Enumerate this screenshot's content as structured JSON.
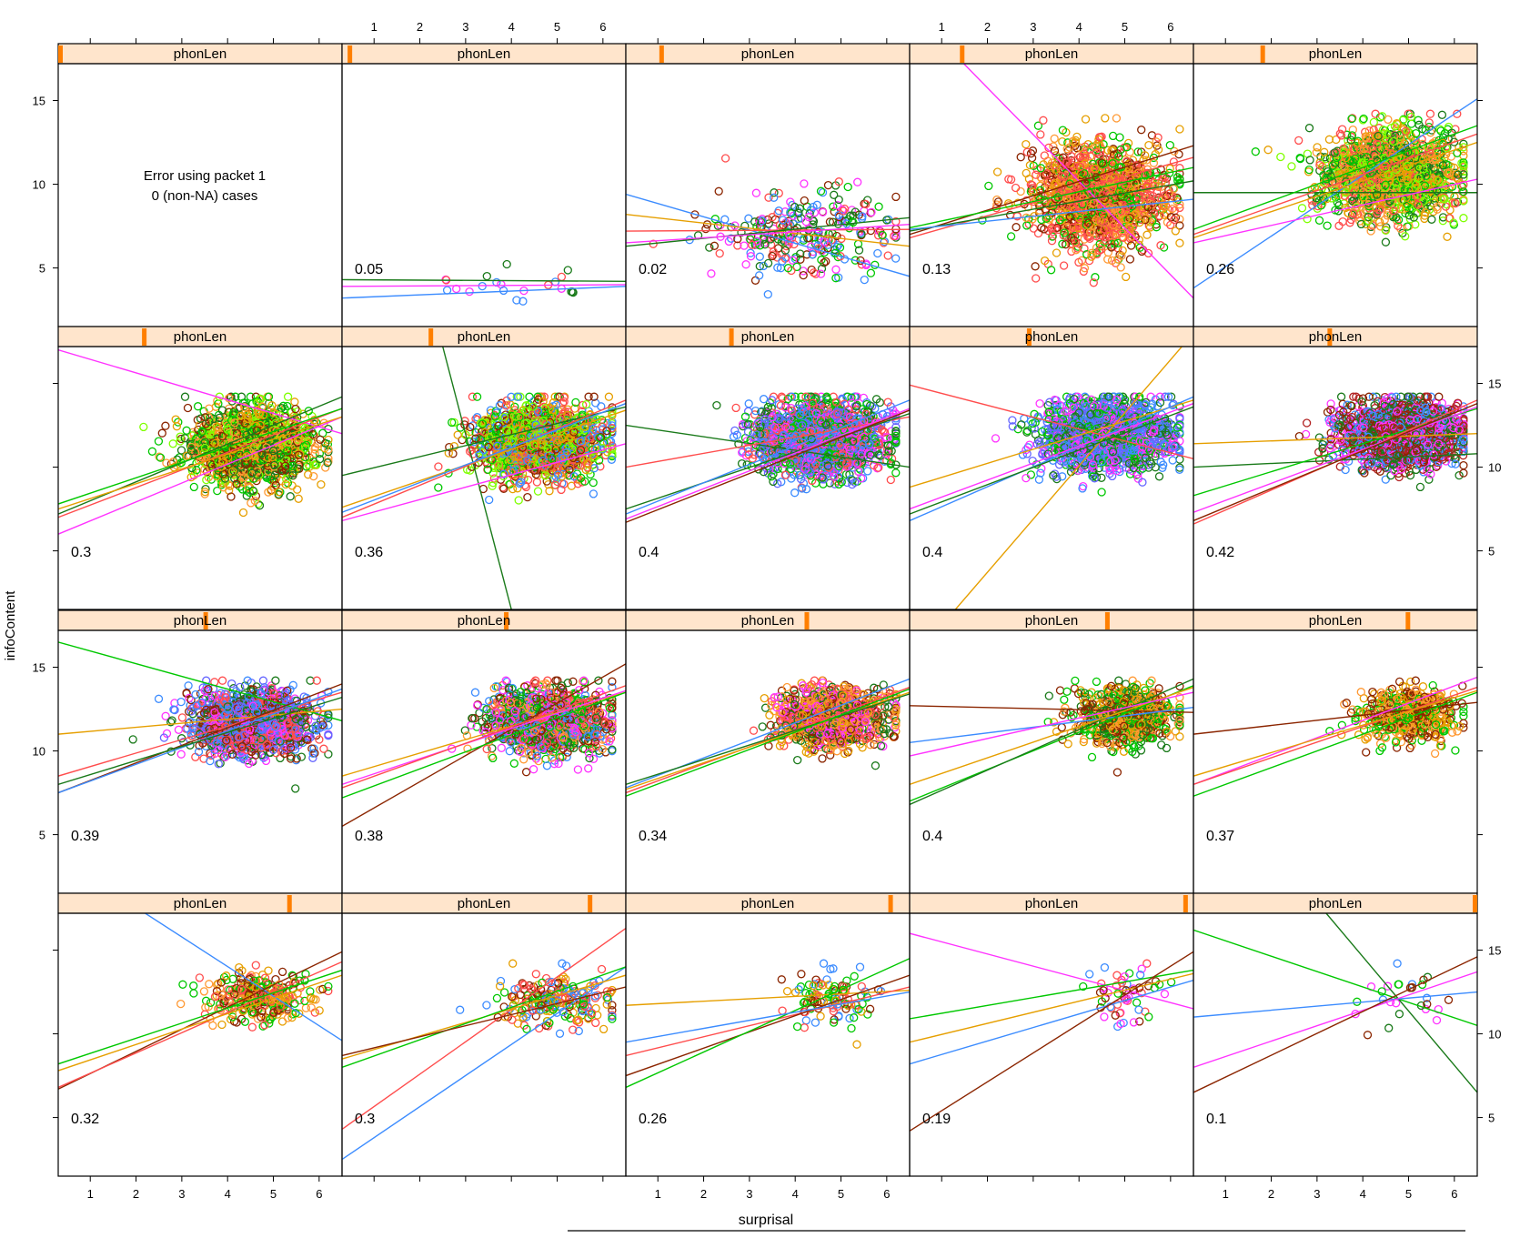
{
  "chart_data": {
    "type": "scatter",
    "layout": {
      "columns": 5,
      "rows": 4
    },
    "xlabel": "surprisal",
    "ylabel": "infoContent",
    "xlim": [
      0.3,
      6.5
    ],
    "ylim": [
      1.5,
      17.2
    ],
    "x_ticks": [
      1,
      2,
      3,
      4,
      5,
      6
    ],
    "y_ticks": [
      5,
      10,
      15
    ],
    "strip_label": "phonLen",
    "grid": false,
    "colors": [
      "#ff4d4d",
      "#e69f00",
      "#00c800",
      "#1a7a1a",
      "#8b2500",
      "#3c8cff",
      "#ff33ff",
      "#b22222",
      "#ff9933",
      "#7fff00",
      "#6666ff"
    ],
    "panels": [
      {
        "label": "",
        "error": [
          "Error using packet 1",
          "0 (non-NA) cases"
        ],
        "level": 0.0,
        "cluster": null,
        "lines": []
      },
      {
        "label": "0.05",
        "level": 0.02,
        "cluster": {
          "n": 22,
          "cx": 4.2,
          "cy": 4.0,
          "sx": 1.1,
          "sy": 0.6,
          "palette": [
            5,
            3,
            6,
            0
          ]
        },
        "lines": [
          {
            "c": 5,
            "y1": 3.2,
            "y2": 3.9
          },
          {
            "c": 6,
            "y1": 3.9,
            "y2": 4.0
          },
          {
            "c": 3,
            "y1": 4.3,
            "y2": 4.2
          }
        ]
      },
      {
        "label": "0.02",
        "level": 0.12,
        "cluster": {
          "n": 300,
          "cx": 4.2,
          "cy": 7.0,
          "sx": 1.2,
          "sy": 1.5,
          "palette": [
            6,
            3,
            4,
            0,
            5,
            2
          ]
        },
        "lines": [
          {
            "c": 5,
            "y1": 9.4,
            "y2": 4.5
          },
          {
            "c": 1,
            "y1": 8.2,
            "y2": 6.3
          },
          {
            "c": 0,
            "y1": 7.2,
            "y2": 7.3
          },
          {
            "c": 3,
            "y1": 6.3,
            "y2": 8.0
          },
          {
            "c": 6,
            "y1": 6.5,
            "y2": 7.6
          }
        ]
      },
      {
        "label": "0.13",
        "level": 0.18,
        "cluster": {
          "n": 1500,
          "cx": 4.4,
          "cy": 9.3,
          "sx": 0.85,
          "sy": 1.8,
          "palette": [
            0,
            8,
            1,
            4,
            0,
            2
          ]
        },
        "lines": [
          {
            "c": 6,
            "y1": 20.5,
            "y2": 3.2
          },
          {
            "c": 4,
            "y1": 7.0,
            "y2": 12.3
          },
          {
            "c": 0,
            "y1": 6.8,
            "y2": 11.6
          },
          {
            "c": 2,
            "y1": 7.4,
            "y2": 11.0
          },
          {
            "c": 3,
            "y1": 7.2,
            "y2": 10.2
          },
          {
            "c": 5,
            "y1": 7.3,
            "y2": 9.1
          }
        ]
      },
      {
        "label": "0.26",
        "level": 0.24,
        "cluster": {
          "n": 1500,
          "cx": 4.6,
          "cy": 10.6,
          "sx": 0.9,
          "sy": 1.6,
          "palette": [
            2,
            9,
            8,
            1,
            0,
            3
          ]
        },
        "lines": [
          {
            "c": 5,
            "y1": 3.8,
            "y2": 15.1
          },
          {
            "c": 3,
            "y1": 9.5,
            "y2": 9.5
          },
          {
            "c": 0,
            "y1": 7.0,
            "y2": 13.0
          },
          {
            "c": 1,
            "y1": 6.8,
            "y2": 12.5
          },
          {
            "c": 2,
            "y1": 7.3,
            "y2": 13.5
          },
          {
            "c": 6,
            "y1": 6.5,
            "y2": 10.3
          }
        ]
      },
      {
        "label": "0.3",
        "level": 0.3,
        "cluster": {
          "n": 1500,
          "cx": 4.5,
          "cy": 11.3,
          "sx": 0.8,
          "sy": 1.4,
          "palette": [
            2,
            9,
            1,
            8,
            3,
            4
          ]
        },
        "lines": [
          {
            "c": 6,
            "y1": 17.0,
            "y2": 12.0
          },
          {
            "c": 6,
            "y1": 6.0,
            "y2": 13.0
          },
          {
            "c": 0,
            "y1": 7.0,
            "y2": 13.5
          },
          {
            "c": 3,
            "y1": 7.2,
            "y2": 14.2
          },
          {
            "c": 1,
            "y1": 7.5,
            "y2": 13.0
          },
          {
            "c": 2,
            "y1": 7.8,
            "y2": 13.5
          }
        ]
      },
      {
        "label": "0.36",
        "level": 0.31,
        "cluster": {
          "n": 1700,
          "cx": 4.6,
          "cy": 11.5,
          "sx": 0.8,
          "sy": 1.3,
          "palette": [
            5,
            2,
            4,
            0,
            1,
            9
          ]
        },
        "lines": [
          {
            "c": 3,
            "x1": 2.5,
            "y1": 17.2,
            "x2": 4.0,
            "y2": 1.5
          },
          {
            "c": 3,
            "y1": 9.5,
            "y2": 13.6
          },
          {
            "c": 0,
            "y1": 7.0,
            "y2": 14.0
          },
          {
            "c": 1,
            "y1": 7.6,
            "y2": 13.4
          },
          {
            "c": 6,
            "y1": 6.8,
            "y2": 11.4
          },
          {
            "c": 5,
            "y1": 7.3,
            "y2": 13.8
          }
        ]
      },
      {
        "label": "0.4",
        "level": 0.37,
        "cluster": {
          "n": 1800,
          "cx": 4.5,
          "cy": 11.7,
          "sx": 0.8,
          "sy": 1.3,
          "palette": [
            5,
            6,
            10,
            3,
            2,
            0
          ]
        },
        "lines": [
          {
            "c": 3,
            "y1": 12.5,
            "y2": 10.0
          },
          {
            "c": 0,
            "y1": 10.0,
            "y2": 13.0
          },
          {
            "c": 3,
            "y1": 7.5,
            "y2": 13.2
          },
          {
            "c": 5,
            "y1": 7.2,
            "y2": 14.0
          },
          {
            "c": 6,
            "y1": 6.9,
            "y2": 13.5
          },
          {
            "c": 4,
            "y1": 6.7,
            "y2": 13.4
          }
        ]
      },
      {
        "label": "0.4",
        "level": 0.42,
        "cluster": {
          "n": 1800,
          "cx": 4.6,
          "cy": 11.9,
          "sx": 0.8,
          "sy": 1.2,
          "palette": [
            6,
            5,
            10,
            3,
            2
          ]
        },
        "lines": [
          {
            "c": 1,
            "x1": 1.3,
            "y1": 1.5,
            "x2": 6.5,
            "y2": 18.0
          },
          {
            "c": 0,
            "y1": 14.9,
            "y2": 10.5
          },
          {
            "c": 1,
            "y1": 8.8,
            "y2": 14.0
          },
          {
            "c": 5,
            "y1": 6.8,
            "y2": 14.2
          },
          {
            "c": 3,
            "y1": 7.2,
            "y2": 13.6
          },
          {
            "c": 6,
            "y1": 7.5,
            "y2": 13.8
          }
        ]
      },
      {
        "label": "0.42",
        "level": 0.48,
        "cluster": {
          "n": 1700,
          "cx": 4.8,
          "cy": 12.0,
          "sx": 0.75,
          "sy": 1.1,
          "palette": [
            6,
            4,
            3,
            5,
            7
          ]
        },
        "lines": [
          {
            "c": 1,
            "y1": 11.4,
            "y2": 12.0
          },
          {
            "c": 3,
            "y1": 10.0,
            "y2": 10.8
          },
          {
            "c": 2,
            "y1": 8.3,
            "y2": 13.5
          },
          {
            "c": 0,
            "y1": 6.6,
            "y2": 14.0
          },
          {
            "c": 6,
            "y1": 7.3,
            "y2": 13.6
          },
          {
            "c": 4,
            "y1": 6.8,
            "y2": 13.8
          }
        ]
      },
      {
        "label": "0.39",
        "level": 0.52,
        "cluster": {
          "n": 1600,
          "cx": 4.5,
          "cy": 11.7,
          "sx": 0.75,
          "sy": 1.1,
          "palette": [
            6,
            5,
            10,
            3,
            4,
            0
          ]
        },
        "lines": [
          {
            "c": 2,
            "y1": 16.5,
            "y2": 11.8
          },
          {
            "c": 1,
            "y1": 11.0,
            "y2": 12.5
          },
          {
            "c": 0,
            "y1": 8.5,
            "y2": 13.5
          },
          {
            "c": 4,
            "y1": 7.5,
            "y2": 14.0
          },
          {
            "c": 5,
            "y1": 7.5,
            "y2": 13.7
          },
          {
            "c": 3,
            "y1": 8.0,
            "y2": 13.2
          }
        ]
      },
      {
        "label": "0.38",
        "level": 0.58,
        "cluster": {
          "n": 1300,
          "cx": 4.8,
          "cy": 11.8,
          "sx": 0.75,
          "sy": 1.1,
          "palette": [
            3,
            0,
            2,
            8,
            4,
            6,
            5
          ]
        },
        "lines": [
          {
            "c": 4,
            "y1": 5.5,
            "y2": 15.2
          },
          {
            "c": 1,
            "y1": 8.5,
            "y2": 13.5
          },
          {
            "c": 6,
            "y1": 8.0,
            "y2": 13.6
          },
          {
            "c": 2,
            "y1": 7.2,
            "y2": 13.5
          },
          {
            "c": 0,
            "y1": 7.8,
            "y2": 13.9
          }
        ]
      },
      {
        "label": "0.34",
        "level": 0.64,
        "cluster": {
          "n": 1100,
          "cx": 4.8,
          "cy": 12.0,
          "sx": 0.7,
          "sy": 1.0,
          "palette": [
            0,
            4,
            1,
            8,
            3,
            6
          ]
        },
        "lines": [
          {
            "c": 5,
            "y1": 7.8,
            "y2": 14.3
          },
          {
            "c": 0,
            "y1": 7.5,
            "y2": 13.8
          },
          {
            "c": 1,
            "y1": 7.7,
            "y2": 13.5
          },
          {
            "c": 3,
            "y1": 8.0,
            "y2": 13.4
          },
          {
            "c": 2,
            "y1": 7.3,
            "y2": 13.7
          }
        ]
      },
      {
        "label": "0.4",
        "level": 0.7,
        "cluster": {
          "n": 700,
          "cx": 5.0,
          "cy": 12.0,
          "sx": 0.65,
          "sy": 1.0,
          "palette": [
            1,
            8,
            4,
            2,
            3
          ]
        },
        "lines": [
          {
            "c": 4,
            "y1": 12.7,
            "y2": 12.3
          },
          {
            "c": 5,
            "y1": 10.5,
            "y2": 12.6
          },
          {
            "c": 2,
            "y1": 7.0,
            "y2": 13.9
          },
          {
            "c": 3,
            "y1": 6.8,
            "y2": 14.3
          },
          {
            "c": 1,
            "y1": 8.0,
            "y2": 13.8
          },
          {
            "c": 6,
            "y1": 9.7,
            "y2": 13.5
          }
        ]
      },
      {
        "label": "0.37",
        "level": 0.76,
        "cluster": {
          "n": 500,
          "cx": 5.0,
          "cy": 12.1,
          "sx": 0.65,
          "sy": 0.95,
          "palette": [
            1,
            8,
            4,
            2
          ]
        },
        "lines": [
          {
            "c": 4,
            "y1": 11.0,
            "y2": 12.9
          },
          {
            "c": 6,
            "y1": 8.0,
            "y2": 14.4
          },
          {
            "c": 2,
            "y1": 7.3,
            "y2": 13.5
          },
          {
            "c": 0,
            "y1": 8.0,
            "y2": 13.8
          },
          {
            "c": 1,
            "y1": 8.5,
            "y2": 13.6
          }
        ]
      },
      {
        "label": "0.32",
        "level": 0.82,
        "cluster": {
          "n": 320,
          "cx": 4.7,
          "cy": 12.2,
          "sx": 0.7,
          "sy": 0.9,
          "palette": [
            1,
            2,
            8,
            4,
            0
          ]
        },
        "lines": [
          {
            "c": 5,
            "x1": 2.2,
            "y1": 17.2,
            "x2": 6.5,
            "y2": 9.6
          },
          {
            "c": 4,
            "y1": 6.7,
            "y2": 14.9
          },
          {
            "c": 0,
            "y1": 6.8,
            "y2": 14.3
          },
          {
            "c": 1,
            "y1": 7.8,
            "y2": 13.5
          },
          {
            "c": 2,
            "y1": 8.2,
            "y2": 13.8
          }
        ]
      },
      {
        "label": "0.3",
        "level": 0.88,
        "cluster": {
          "n": 220,
          "cx": 5.0,
          "cy": 12.0,
          "sx": 0.75,
          "sy": 1.0,
          "palette": [
            2,
            1,
            4,
            0,
            5
          ]
        },
        "lines": [
          {
            "c": 5,
            "y1": 2.5,
            "y2": 14.0
          },
          {
            "c": 0,
            "y1": 4.3,
            "y2": 16.3
          },
          {
            "c": 1,
            "y1": 8.5,
            "y2": 13.5
          },
          {
            "c": 2,
            "y1": 8.0,
            "y2": 14.0
          },
          {
            "c": 4,
            "y1": 8.7,
            "y2": 12.8
          }
        ]
      },
      {
        "label": "0.26",
        "level": 0.94,
        "cluster": {
          "n": 110,
          "cx": 4.8,
          "cy": 12.2,
          "sx": 0.6,
          "sy": 1.1,
          "palette": [
            0,
            4,
            2,
            1,
            5
          ]
        },
        "lines": [
          {
            "c": 1,
            "y1": 11.7,
            "y2": 12.6
          },
          {
            "c": 0,
            "y1": 8.7,
            "y2": 12.8
          },
          {
            "c": 4,
            "y1": 7.5,
            "y2": 13.5
          },
          {
            "c": 2,
            "y1": 6.8,
            "y2": 14.5
          },
          {
            "c": 5,
            "y1": 9.5,
            "y2": 12.5
          }
        ]
      },
      {
        "label": "0.19",
        "level": 0.98,
        "cluster": {
          "n": 55,
          "cx": 5.0,
          "cy": 12.2,
          "sx": 0.5,
          "sy": 1.3,
          "palette": [
            0,
            6,
            4,
            5,
            2
          ]
        },
        "lines": [
          {
            "c": 6,
            "y1": 16.0,
            "y2": 11.5
          },
          {
            "c": 2,
            "y1": 10.9,
            "y2": 13.8
          },
          {
            "c": 1,
            "y1": 9.5,
            "y2": 13.6
          },
          {
            "c": 5,
            "y1": 8.2,
            "y2": 13.2
          },
          {
            "c": 4,
            "y1": 4.2,
            "y2": 14.9
          }
        ]
      },
      {
        "label": "0.1",
        "level": 1.0,
        "cluster": {
          "n": 28,
          "cx": 4.9,
          "cy": 12.2,
          "sx": 0.6,
          "sy": 1.1,
          "palette": [
            6,
            4,
            2,
            5,
            3
          ]
        },
        "lines": [
          {
            "c": 2,
            "y1": 16.2,
            "y2": 10.5
          },
          {
            "c": 3,
            "x1": 3.2,
            "y1": 17.2,
            "x2": 6.5,
            "y2": 6.5
          },
          {
            "c": 5,
            "y1": 11.0,
            "y2": 12.5
          },
          {
            "c": 6,
            "y1": 8.0,
            "y2": 13.7
          },
          {
            "c": 4,
            "y1": 6.5,
            "y2": 14.6
          }
        ]
      }
    ]
  }
}
